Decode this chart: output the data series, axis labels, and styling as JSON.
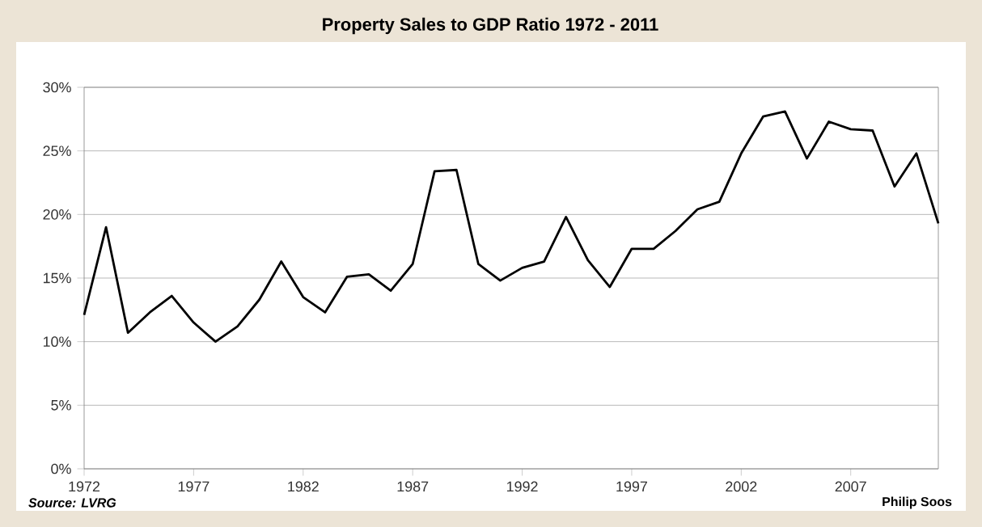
{
  "chart_data": {
    "type": "line",
    "title": "Property Sales to GDP Ratio 1972 - 2011",
    "x": [
      1972,
      1973,
      1974,
      1975,
      1976,
      1977,
      1978,
      1979,
      1980,
      1981,
      1982,
      1983,
      1984,
      1985,
      1986,
      1987,
      1988,
      1989,
      1990,
      1991,
      1992,
      1993,
      1994,
      1995,
      1996,
      1997,
      1998,
      1999,
      2000,
      2001,
      2002,
      2003,
      2004,
      2005,
      2006,
      2007,
      2008,
      2009,
      2010,
      2011
    ],
    "series": [
      {
        "color": "#000000",
        "values": [
          12.1,
          19.0,
          10.7,
          12.3,
          13.6,
          11.5,
          10.0,
          11.2,
          13.3,
          16.3,
          13.5,
          12.3,
          15.1,
          15.3,
          14.0,
          16.1,
          23.4,
          23.5,
          16.1,
          14.8,
          15.8,
          16.3,
          19.8,
          16.4,
          14.3,
          17.3,
          17.3,
          18.7,
          20.4,
          21.0,
          24.8,
          27.7,
          28.1,
          24.4,
          27.3,
          26.7,
          26.6,
          22.2,
          24.8,
          19.3
        ]
      }
    ],
    "xlim": [
      1972,
      2011
    ],
    "xticks": [
      1972,
      1977,
      1982,
      1987,
      1992,
      1997,
      2002,
      2007
    ],
    "ylim": [
      0,
      30
    ],
    "yticks": [
      {
        "value": 0,
        "label": "0%"
      },
      {
        "value": 5,
        "label": "5%"
      },
      {
        "value": 10,
        "label": "10%"
      },
      {
        "value": 15,
        "label": "15%"
      },
      {
        "value": 20,
        "label": "20%"
      },
      {
        "value": 25,
        "label": "25%"
      },
      {
        "value": 30,
        "label": "30%"
      }
    ],
    "grid": "y",
    "marker": "none",
    "line_style": "solid",
    "annotations": [
      "Source: LVRG",
      "Philip Soos"
    ]
  }
}
